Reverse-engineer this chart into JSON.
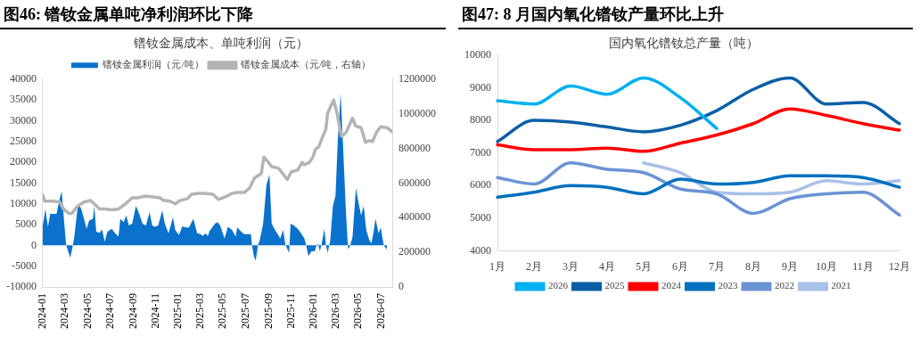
{
  "chart_data": [
    {
      "type": "area",
      "title": "图46:  镨钕金属单吨净利润环比下降",
      "subtitle": "镨钕金属成本、单吨利润（元）",
      "legend": "top",
      "grid": false,
      "xlim": [
        "2024-01-01",
        "2026-07-31"
      ],
      "xticks": [
        "2024-01",
        "2024-03",
        "2024-05",
        "2024-07",
        "2024-09",
        "2024-11",
        "2025-01",
        "2025-03",
        "2025-05",
        "2025-07",
        "2025-09",
        "2025-11",
        "2026-01",
        "2026-03",
        "2026-05",
        "2026-07"
      ],
      "ylim": [
        -10000,
        40000
      ],
      "yticks": [
        -10000,
        -5000,
        0,
        5000,
        10000,
        15000,
        20000,
        25000,
        30000,
        35000,
        40000
      ],
      "y2lim": [
        0,
        1200000
      ],
      "y2ticks": [
        0,
        200000,
        400000,
        600000,
        800000,
        1000000,
        1200000
      ],
      "series": [
        {
          "name": "镨钕金属利润（元/吨）",
          "color": "#0a72cc",
          "x": [
            "2024-01-01",
            "2024-01-08",
            "2024-01-15",
            "2024-01-21",
            "2024-01-29",
            "2024-02-07",
            "2024-02-16",
            "2024-02-21",
            "2024-02-28",
            "2024-03-04",
            "2024-03-08",
            "2024-03-15",
            "2024-03-20",
            "2024-03-26",
            "2024-04-03",
            "2024-04-07",
            "2024-04-14",
            "2024-04-20",
            "2024-04-28",
            "2024-05-05",
            "2024-05-15",
            "2024-05-19",
            "2024-05-24",
            "2024-06-02",
            "2024-06-09",
            "2024-06-16",
            "2024-06-23",
            "2024-07-05",
            "2024-07-14",
            "2024-07-23",
            "2024-07-28",
            "2024-08-06",
            "2024-08-13",
            "2024-08-20",
            "2024-08-29",
            "2024-09-08",
            "2024-09-17",
            "2024-09-26",
            "2024-10-05",
            "2024-10-15",
            "2024-10-22",
            "2024-10-29",
            "2024-11-07",
            "2024-11-18",
            "2024-11-25",
            "2024-12-05",
            "2024-12-17",
            "2024-12-23",
            "2025-01-02",
            "2025-01-11",
            "2025-01-20",
            "2025-01-29",
            "2025-02-10",
            "2025-02-20",
            "2025-03-01",
            "2025-03-08",
            "2025-03-14",
            "2025-03-21",
            "2025-03-26",
            "2025-04-03",
            "2025-04-09",
            "2025-04-16",
            "2025-04-23",
            "2025-05-05",
            "2025-05-14",
            "2025-05-25",
            "2025-06-04",
            "2025-06-08",
            "2025-06-19",
            "2025-06-27",
            "2025-07-09",
            "2025-07-15",
            "2025-07-18",
            "2025-07-23",
            "2025-07-28",
            "2025-08-03",
            "2025-08-08",
            "2025-08-17",
            "2025-08-26",
            "2025-09-03",
            "2025-09-09",
            "2025-09-18",
            "2025-10-02",
            "2025-10-10",
            "2025-10-16",
            "2025-10-26",
            "2025-10-30",
            "2025-11-08",
            "2025-11-18",
            "2025-11-27",
            "2025-12-06",
            "2025-12-11",
            "2025-12-17",
            "2025-12-25",
            "2026-01-03",
            "2026-01-08",
            "2026-01-12",
            "2026-01-17",
            "2026-01-22",
            "2026-01-29",
            "2026-02-02",
            "2026-02-07",
            "2026-02-14",
            "2026-02-21",
            "2026-02-28",
            "2026-03-06",
            "2026-03-14",
            "2026-03-20",
            "2026-03-28",
            "2026-04-03",
            "2026-04-09",
            "2026-04-15",
            "2026-04-24",
            "2026-05-02",
            "2026-05-08",
            "2026-05-15",
            "2026-05-22",
            "2026-05-30",
            "2026-06-05",
            "2026-06-10",
            "2026-06-16",
            "2026-06-24",
            "2026-06-30",
            "2026-07-08",
            "2026-07-17"
          ],
          "values": [
            4800,
            8700,
            4500,
            7600,
            7600,
            7600,
            11500,
            13000,
            5200,
            0,
            -1000,
            -3000,
            -1000,
            2100,
            8400,
            9900,
            8700,
            6800,
            4000,
            6000,
            6400,
            9500,
            3300,
            3000,
            3800,
            900,
            3300,
            4000,
            2900,
            2100,
            6400,
            5600,
            7200,
            4800,
            5200,
            9500,
            7600,
            5200,
            4800,
            8000,
            4800,
            4500,
            4800,
            8400,
            5200,
            2900,
            6800,
            3700,
            2500,
            4600,
            4300,
            4300,
            6400,
            2900,
            2700,
            2300,
            2900,
            2300,
            3500,
            4500,
            5200,
            5600,
            4800,
            1700,
            4500,
            3700,
            2100,
            4300,
            3300,
            2700,
            2700,
            2700,
            0,
            -2600,
            -3700,
            0,
            1300,
            5200,
            14600,
            17000,
            5200,
            3700,
            1700,
            3700,
            200,
            -1800,
            5200,
            4800,
            4000,
            2900,
            1700,
            0,
            -2600,
            -1400,
            -1400,
            0,
            400,
            -1400,
            500,
            4000,
            200,
            -1800,
            1300,
            9500,
            11900,
            24800,
            36500,
            24800,
            8400,
            -1000,
            0,
            2100,
            13800,
            9900,
            7200,
            9500,
            3700,
            1300,
            500,
            2900,
            6400,
            2900,
            4300,
            0,
            -1000
          ]
        },
        {
          "name": "镨钕金属成本（元/吨，右轴）",
          "type": "line",
          "axis": "y2",
          "color": "#b4b4b4",
          "x": [
            "2024-01-01",
            "2024-01-06",
            "2024-01-29",
            "2024-02-16",
            "2024-02-26",
            "2024-03-11",
            "2024-03-20",
            "2024-04-03",
            "2024-04-21",
            "2024-05-08",
            "2024-05-19",
            "2024-06-02",
            "2024-06-16",
            "2024-07-05",
            "2024-07-23",
            "2024-08-11",
            "2024-08-29",
            "2024-09-12",
            "2024-10-05",
            "2024-10-24",
            "2024-11-12",
            "2024-11-21",
            "2024-12-09",
            "2024-12-23",
            "2025-01-06",
            "2025-01-25",
            "2025-02-05",
            "2025-02-22",
            "2025-03-12",
            "2025-04-04",
            "2025-04-18",
            "2025-05-07",
            "2025-05-25",
            "2025-06-08",
            "2025-06-27",
            "2025-07-11",
            "2025-07-25",
            "2025-08-12",
            "2025-08-19",
            "2025-08-31",
            "2025-09-09",
            "2025-09-28",
            "2025-10-12",
            "2025-10-21",
            "2025-11-01",
            "2025-11-18",
            "2025-11-30",
            "2025-12-06",
            "2025-12-20",
            "2025-12-29",
            "2026-01-05",
            "2026-01-14",
            "2026-01-22",
            "2026-02-02",
            "2026-02-07",
            "2026-02-23",
            "2026-03-04",
            "2026-03-16",
            "2026-03-28",
            "2026-04-15",
            "2026-04-23",
            "2026-05-08",
            "2026-05-20",
            "2026-05-30",
            "2026-06-08",
            "2026-06-19",
            "2026-06-30",
            "2026-07-17",
            "2026-07-31"
          ],
          "values": [
            530000,
            495000,
            495000,
            490000,
            450000,
            425000,
            425000,
            465000,
            490000,
            500000,
            480000,
            450000,
            450000,
            445000,
            450000,
            480000,
            515000,
            515000,
            525000,
            520000,
            515000,
            500000,
            495000,
            480000,
            500000,
            510000,
            535000,
            540000,
            540000,
            535000,
            505000,
            520000,
            540000,
            545000,
            545000,
            570000,
            630000,
            655000,
            750000,
            720000,
            695000,
            685000,
            645000,
            620000,
            665000,
            675000,
            720000,
            705000,
            720000,
            750000,
            795000,
            810000,
            855000,
            910000,
            1005000,
            1080000,
            1005000,
            870000,
            890000,
            975000,
            930000,
            920000,
            835000,
            845000,
            840000,
            895000,
            925000,
            920000,
            895000
          ]
        }
      ]
    },
    {
      "type": "line",
      "title": "图47:  8 月国内氧化镨钕产量环比上升",
      "subtitle": "国内氧化镨钕总产量（吨）",
      "legend": "bottom",
      "grid": false,
      "marker": "none",
      "line_style": "solid",
      "categories": [
        "1月",
        "2月",
        "3月",
        "4月",
        "5月",
        "6月",
        "7月",
        "8月",
        "9月",
        "10月",
        "11月",
        "12月"
      ],
      "ylim": [
        4000,
        10000
      ],
      "yticks": [
        4000,
        5000,
        6000,
        7000,
        8000,
        9000,
        10000
      ],
      "series": [
        {
          "name": "2026",
          "color": "#00b0f0",
          "values": [
            8600,
            8500,
            9050,
            8800,
            9300,
            8700,
            7750,
            null,
            null,
            null,
            null,
            null
          ]
        },
        {
          "name": "2025",
          "color": "#0b5fa5",
          "values": [
            7350,
            8000,
            7950,
            7800,
            7650,
            7850,
            8300,
            8950,
            9300,
            8500,
            8550,
            7900
          ]
        },
        {
          "name": "2024",
          "color": "#ff0000",
          "values": [
            7250,
            7100,
            7100,
            7150,
            7050,
            7300,
            7550,
            7900,
            8350,
            8150,
            7900,
            7700
          ]
        },
        {
          "name": "2023",
          "color": "#0070c0",
          "values": [
            5650,
            5800,
            6000,
            5950,
            5750,
            6200,
            6050,
            6100,
            6300,
            6300,
            6250,
            5950
          ]
        },
        {
          "name": "2022",
          "color": "#6a93d4",
          "values": [
            6250,
            6050,
            6700,
            6500,
            6400,
            5900,
            5750,
            5150,
            5600,
            5750,
            5800,
            5100
          ]
        },
        {
          "name": "2021",
          "color": "#a9c1e8",
          "values": [
            null,
            null,
            null,
            null,
            6700,
            6400,
            5800,
            5750,
            5800,
            6150,
            6050,
            6150
          ]
        }
      ]
    }
  ]
}
